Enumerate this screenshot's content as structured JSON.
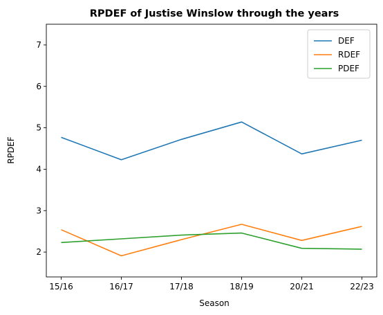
{
  "chart_data": {
    "type": "line",
    "title": "RPDEF of Justise Winslow through the years",
    "xlabel": "Season",
    "ylabel": "RPDEF",
    "categories": [
      "15/16",
      "16/17",
      "17/18",
      "18/19",
      "20/21",
      "22/23"
    ],
    "ylim": [
      1.4,
      7.5
    ],
    "yticks": [
      2,
      3,
      4,
      5,
      6,
      7
    ],
    "grid": false,
    "legend_position": "top-right",
    "series": [
      {
        "name": "DEF",
        "color": "#1f77b4",
        "values": [
          4.77,
          4.23,
          4.72,
          5.14,
          4.37,
          4.7
        ]
      },
      {
        "name": "RDEF",
        "color": "#ff7f0e",
        "values": [
          2.54,
          1.91,
          2.3,
          2.67,
          2.28,
          2.62
        ]
      },
      {
        "name": "PDEF",
        "color": "#2ca02c",
        "values": [
          2.23,
          2.32,
          2.41,
          2.46,
          2.09,
          2.07
        ]
      }
    ]
  }
}
